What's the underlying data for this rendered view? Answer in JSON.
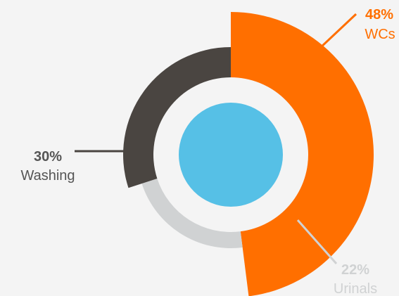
{
  "chart_data": {
    "type": "pie",
    "style": "radial-donut",
    "start_angle_deg": 0,
    "direction": "clockwise",
    "slices": [
      {
        "label": "WCs",
        "value": 48,
        "value_label": "48%",
        "color": "#ff6f00",
        "label_color": "#ff6f00"
      },
      {
        "label": "Urinals",
        "value": 22,
        "value_label": "22%",
        "color": "#d0d2d3",
        "label_color": "#d0d2d3"
      },
      {
        "label": "Washing",
        "value": 30,
        "value_label": "30%",
        "color": "#4a4541",
        "label_color": "#555555"
      }
    ],
    "center_disc_color": "#56c0e6",
    "background_color": "#f4f4f4"
  }
}
